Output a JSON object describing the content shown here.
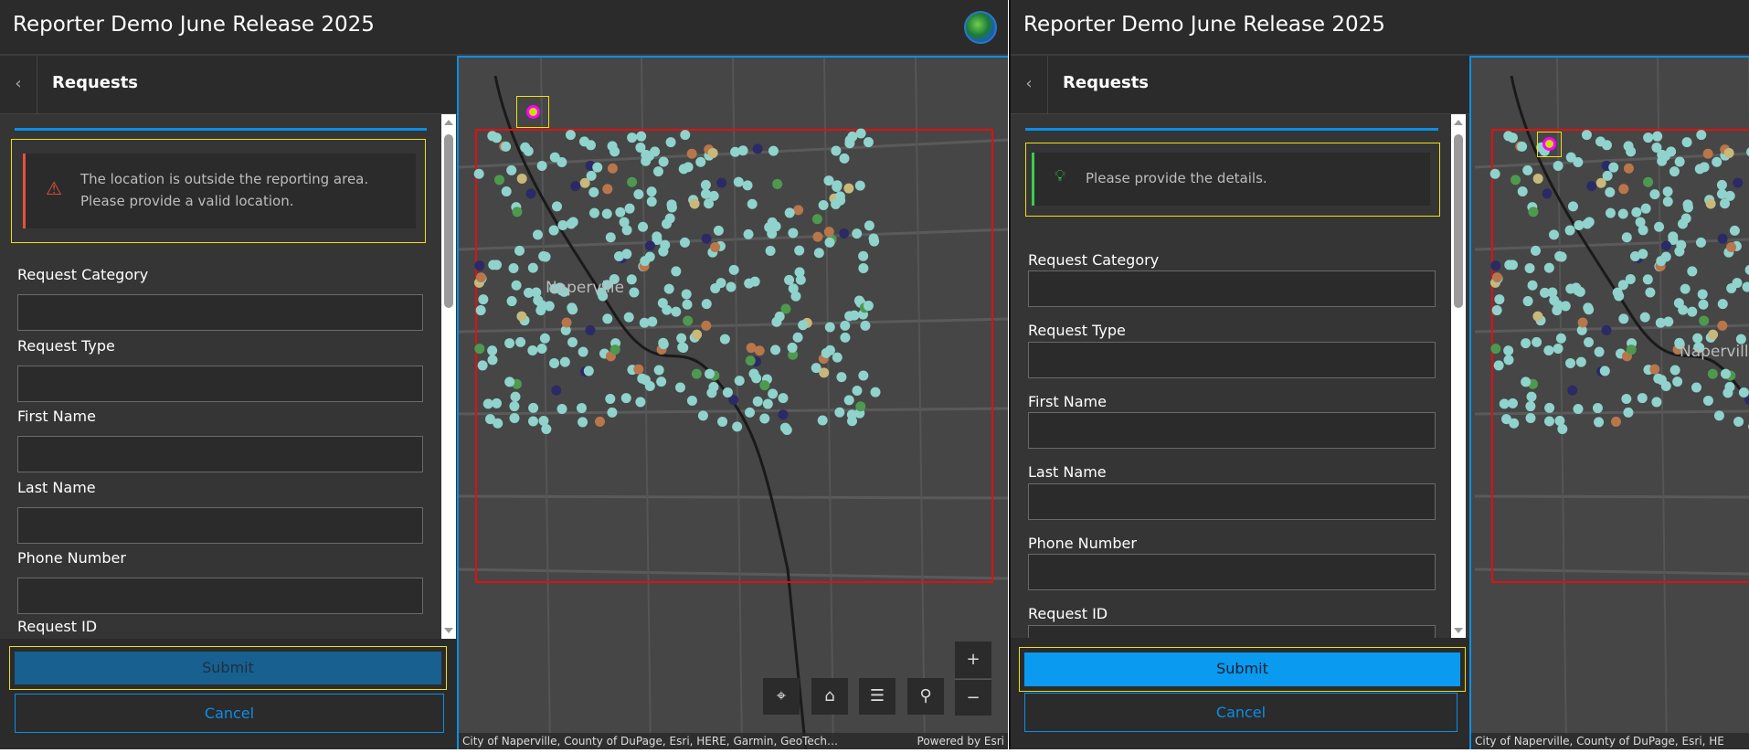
{
  "colors": {
    "accent": "#0a8fe8",
    "error": "#e8503a",
    "success": "#3ccc4a",
    "highlight": "#f0e010",
    "boundary": "#e01010",
    "submit_disabled": "#17608f",
    "submit_enabled": "#0a9af0",
    "point_colors": [
      "#8fd3cc",
      "#b8764a",
      "#c8b87a",
      "#4d9a4f",
      "#2b2a66"
    ]
  },
  "screens": [
    {
      "app_title": "Reporter Demo June Release 2025",
      "panel_title": "Requests",
      "back_icon": "chevron-left-icon",
      "alert": {
        "type": "error",
        "icon": "warning-triangle-icon",
        "line1": "The location is outside the reporting area.",
        "line2": "Please provide a valid location."
      },
      "fields": [
        {
          "label": "Request Category",
          "value": ""
        },
        {
          "label": "Request Type",
          "value": ""
        },
        {
          "label": "First Name",
          "value": ""
        },
        {
          "label": "Last Name",
          "value": ""
        },
        {
          "label": "Phone Number",
          "value": ""
        },
        {
          "label": "Request ID",
          "value": ""
        }
      ],
      "submit": "Submit",
      "submit_state": "disabled",
      "cancel": "Cancel",
      "map": {
        "place_label": "Naperville",
        "attribution": "City of Naperville, County of DuPage, Esri, HERE, Garmin, GeoTech…",
        "powered_by": "Powered by Esri",
        "controls": {
          "zoom_in": "+",
          "zoom_out": "−"
        }
      }
    },
    {
      "app_title": "Reporter Demo June Release 2025",
      "panel_title": "Requests",
      "back_icon": "chevron-left-icon",
      "alert": {
        "type": "info",
        "icon": "lightbulb-icon",
        "line1": "Please provide the details."
      },
      "fields": [
        {
          "label": "Request Category",
          "value": ""
        },
        {
          "label": "Request Type",
          "value": ""
        },
        {
          "label": "First Name",
          "value": ""
        },
        {
          "label": "Last Name",
          "value": ""
        },
        {
          "label": "Phone Number",
          "value": ""
        },
        {
          "label": "Request ID",
          "value": ""
        }
      ],
      "submit": "Submit",
      "submit_state": "enabled",
      "cancel": "Cancel",
      "map": {
        "place_label": "Napervill",
        "attribution": "City of Naperville, County of DuPage, Esri, HE"
      }
    }
  ]
}
